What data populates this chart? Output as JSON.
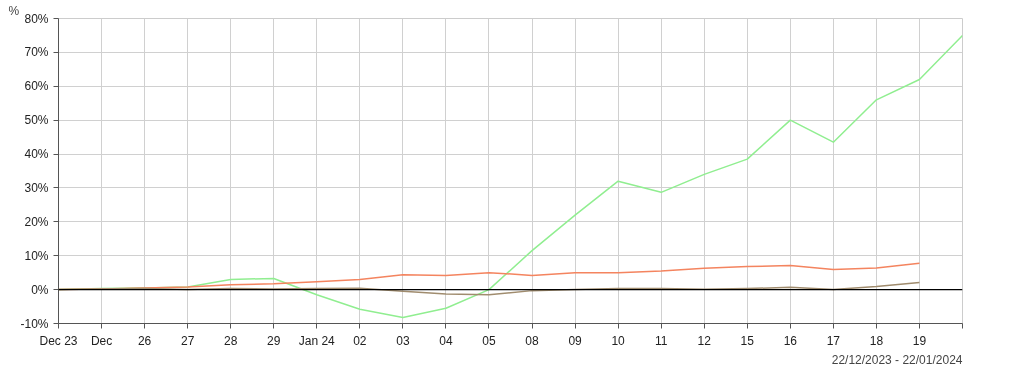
{
  "chart_data": {
    "type": "line",
    "ylabel": "%",
    "categories": [
      "Dec 23",
      "Dec",
      "26",
      "27",
      "28",
      "29",
      "Jan 24",
      "02",
      "03",
      "04",
      "05",
      "08",
      "09",
      "10",
      "11",
      "12",
      "15",
      "16",
      "17",
      "18",
      "19",
      null
    ],
    "series": [
      {
        "color": "#90ee90",
        "values": [
          0,
          0.3,
          0.5,
          0.8,
          3,
          3.3,
          -1.5,
          -5.8,
          -8.2,
          -5.5,
          0,
          11.5,
          22,
          32,
          28.7,
          34,
          38.5,
          50,
          43.5,
          56,
          62,
          75
        ]
      },
      {
        "color": "#f4845f",
        "values": [
          0,
          0.2,
          0.5,
          0.8,
          1.4,
          1.7,
          2.3,
          3,
          4.4,
          4.2,
          5,
          4.2,
          5,
          5,
          5.5,
          6.3,
          6.8,
          7.1,
          5.9,
          6.4,
          7.8,
          null
        ]
      },
      {
        "color": "#a08c6e",
        "values": [
          0,
          0.2,
          0.3,
          0,
          0.3,
          0.2,
          0.3,
          0.4,
          -0.5,
          -1.3,
          -1.5,
          -0.3,
          0,
          0.3,
          0.3,
          0.1,
          0.3,
          0.7,
          0,
          0.9,
          2.1,
          null
        ]
      }
    ],
    "ylim": [
      -10,
      80
    ],
    "yticks": [
      {
        "value": -10,
        "label": "-10%"
      },
      {
        "value": 0,
        "label": "0%"
      },
      {
        "value": 10,
        "label": "10%"
      },
      {
        "value": 20,
        "label": "20%"
      },
      {
        "value": 30,
        "label": "30%"
      },
      {
        "value": 40,
        "label": "40%"
      },
      {
        "value": 50,
        "label": "50%"
      },
      {
        "value": 60,
        "label": "60%"
      },
      {
        "value": 70,
        "label": "70%"
      },
      {
        "value": 80,
        "label": "80%"
      }
    ],
    "ref_lines": [
      {
        "axis": "y",
        "value": 0,
        "color": "#000000"
      }
    ],
    "grid": true,
    "marker": "none",
    "line_style": "solid",
    "annotations": [
      "22/12/2023 - 22/01/2024"
    ]
  }
}
